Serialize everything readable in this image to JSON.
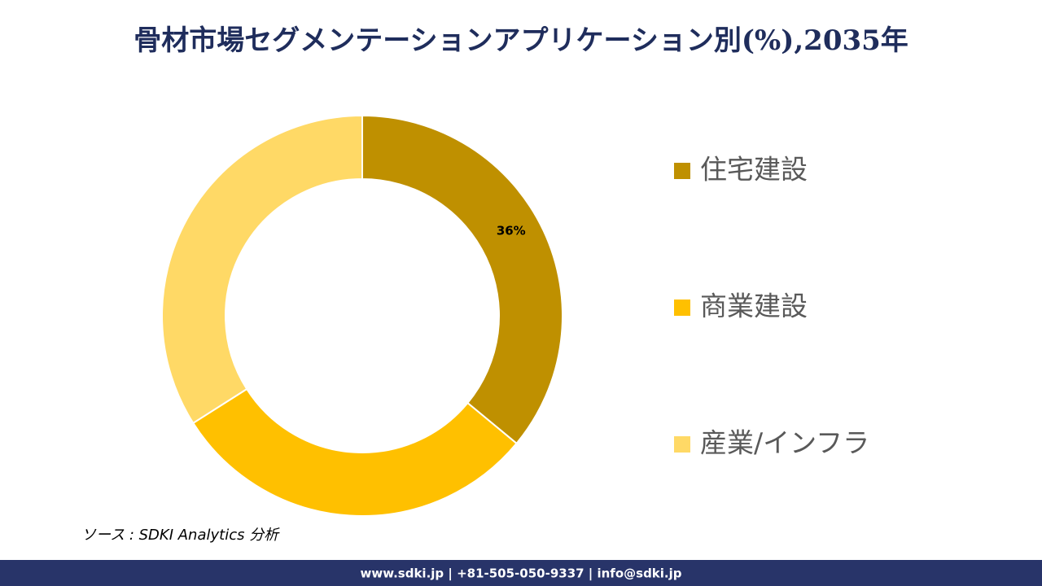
{
  "chart_data": {
    "type": "donut",
    "title": "骨材市場セグメンテーションアプリケーション別(%),2035年",
    "categories": [
      "住宅建設",
      "商業建設",
      "産業/インフラ"
    ],
    "values": [
      36,
      30,
      34
    ],
    "value_labels": [
      "36%",
      null,
      null
    ],
    "colors": [
      "#bf9000",
      "#ffc000",
      "#ffd966"
    ]
  },
  "source": "ソース : SDKI Analytics 分析",
  "footer": "www.sdki.jp | +81-505-050-9337 | info@sdki.jp"
}
